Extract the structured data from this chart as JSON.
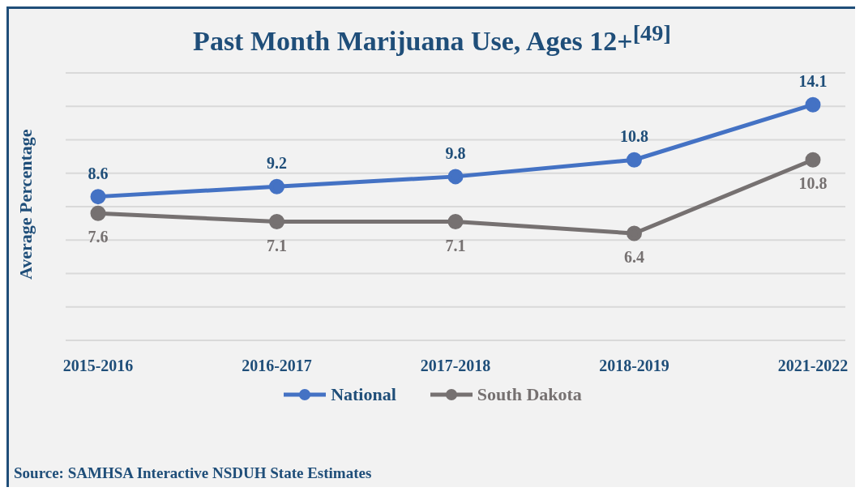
{
  "chart_data": {
    "type": "line",
    "title": "Past Month Marijuana Use, Ages 12+$^{[49]}$",
    "ylabel": "Average Percentage",
    "categories": [
      "2015-2016",
      "2016-2017",
      "2017-2018",
      "2018-2019",
      "2021-2022"
    ],
    "series": [
      {
        "name": "National",
        "color": "#4472c4",
        "values": [
          8.6,
          9.2,
          9.8,
          10.8,
          14.1
        ]
      },
      {
        "name": "South Dakota",
        "color": "#767171",
        "values": [
          7.6,
          7.1,
          7.1,
          6.4,
          10.8
        ]
      }
    ],
    "ylim": [
      0,
      16
    ],
    "yticks": [
      {
        "value": 0,
        "label": null
      },
      {
        "value": 2,
        "label": null
      },
      {
        "value": 4,
        "label": null
      },
      {
        "value": 6,
        "label": null
      },
      {
        "value": 8,
        "label": null
      },
      {
        "value": 10,
        "label": null
      },
      {
        "value": 12,
        "label": null
      },
      {
        "value": 14,
        "label": null
      },
      {
        "value": 16,
        "label": null
      }
    ],
    "tick_labels": "x",
    "grid": "y",
    "legend": "bottom",
    "marker": "circle",
    "line_style": "solid",
    "data_labels": true,
    "annotations": [
      "Source: SAMHSA Interactive NSDUH State Estimates"
    ]
  }
}
